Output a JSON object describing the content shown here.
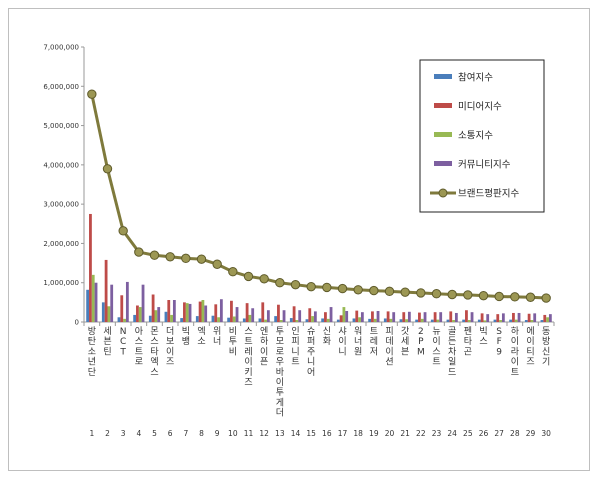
{
  "chart_data": {
    "type": "bar",
    "ylim": [
      0,
      7000000
    ],
    "yticks": [
      "0",
      "1,000,000",
      "2,000,000",
      "3,000,000",
      "4,000,000",
      "5,000,000",
      "6,000,000",
      "7,000,000"
    ],
    "category_numbers": [
      "1",
      "2",
      "3",
      "4",
      "5",
      "6",
      "7",
      "8",
      "9",
      "10",
      "11",
      "12",
      "13",
      "14",
      "15",
      "16",
      "17",
      "18",
      "19",
      "20",
      "21",
      "22",
      "23",
      "24",
      "25",
      "26",
      "27",
      "28",
      "29",
      "30"
    ],
    "categories": [
      "방탄소년단",
      "세븐틴",
      "NCT",
      "아스트로",
      "몬스타엑스",
      "더보이즈",
      "빅뱅",
      "엑소",
      "위너",
      "비투비",
      "스트레이키즈",
      "엔하이픈",
      "투모로우바이투게더",
      "인피니트",
      "슈퍼주니어",
      "신화",
      "샤이니",
      "워너원",
      "트레저",
      "피데이션",
      "갓세븐",
      "2PM",
      "뉴이스트",
      "골든차일드",
      "펜타곤",
      "빅스",
      "SF9",
      "하이라이트",
      "에이티즈",
      "동방신기"
    ],
    "legend_position": "top-right",
    "grid": false,
    "series": [
      {
        "name": "참여지수",
        "kind": "bar",
        "color": "#4a7ebb",
        "values": [
          820000,
          500000,
          120000,
          180000,
          160000,
          260000,
          100000,
          150000,
          160000,
          110000,
          90000,
          90000,
          150000,
          100000,
          70000,
          90000,
          60000,
          90000,
          80000,
          90000,
          70000,
          60000,
          60000,
          60000,
          60000,
          60000,
          60000,
          60000,
          50000,
          50000
        ]
      },
      {
        "name": "미디어지수",
        "kind": "bar",
        "color": "#be4b48",
        "values": [
          2750000,
          1580000,
          680000,
          420000,
          700000,
          560000,
          500000,
          520000,
          450000,
          540000,
          480000,
          500000,
          440000,
          400000,
          350000,
          250000,
          170000,
          290000,
          270000,
          270000,
          250000,
          240000,
          250000,
          270000,
          300000,
          220000,
          200000,
          230000,
          210000,
          180000
        ]
      },
      {
        "name": "소통지수",
        "kind": "bar",
        "color": "#98b954",
        "values": [
          1200000,
          400000,
          80000,
          380000,
          300000,
          180000,
          480000,
          560000,
          120000,
          140000,
          180000,
          60000,
          50000,
          50000,
          150000,
          80000,
          380000,
          120000,
          80000,
          80000,
          70000,
          80000,
          60000,
          50000,
          50000,
          40000,
          50000,
          60000,
          50000,
          120000
        ]
      },
      {
        "name": "커뮤니티지수",
        "kind": "bar",
        "color": "#7d5fa0",
        "values": [
          1000000,
          950000,
          1020000,
          950000,
          380000,
          560000,
          460000,
          420000,
          580000,
          380000,
          350000,
          300000,
          300000,
          300000,
          270000,
          380000,
          280000,
          250000,
          280000,
          250000,
          260000,
          250000,
          250000,
          230000,
          250000,
          200000,
          220000,
          230000,
          220000,
          200000
        ]
      },
      {
        "name": "브랜드평판지수",
        "kind": "line",
        "color": "#7f7a3c",
        "marker": "#9c9754",
        "values": [
          5800000,
          3900000,
          2320000,
          1780000,
          1700000,
          1660000,
          1620000,
          1600000,
          1470000,
          1280000,
          1160000,
          1100000,
          1000000,
          950000,
          900000,
          880000,
          850000,
          820000,
          800000,
          780000,
          760000,
          740000,
          720000,
          700000,
          690000,
          670000,
          650000,
          640000,
          630000,
          610000
        ]
      }
    ]
  }
}
